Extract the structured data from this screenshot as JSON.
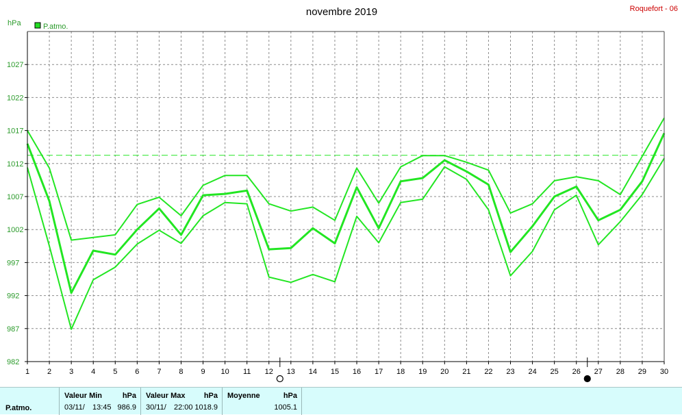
{
  "header": {
    "title": "novembre 2019",
    "station": "Roquefort - 06",
    "unit_label": "hPa",
    "legend_label": "P.atmo."
  },
  "chart_data": {
    "type": "line",
    "title": "novembre 2019",
    "ylabel": "hPa",
    "ylim": [
      982,
      1032
    ],
    "yticks": [
      982,
      987,
      992,
      997,
      1002,
      1007,
      1012,
      1017,
      1022,
      1027
    ],
    "x": [
      1,
      2,
      3,
      4,
      5,
      6,
      7,
      8,
      9,
      10,
      11,
      12,
      13,
      14,
      15,
      16,
      17,
      18,
      19,
      20,
      21,
      22,
      23,
      24,
      25,
      26,
      27,
      28,
      29,
      30
    ],
    "grid": true,
    "reference_line": 1013.25,
    "series": [
      {
        "name": "P.atmo.",
        "role": "max",
        "values": [
          1017.0,
          1011.3,
          1000.4,
          1000.8,
          1001.2,
          1005.8,
          1006.9,
          1004.1,
          1008.7,
          1010.2,
          1010.2,
          1005.9,
          1004.8,
          1005.4,
          1003.4,
          1011.3,
          1006.0,
          1011.5,
          1013.2,
          1013.2,
          1012.2,
          1011.0,
          1004.5,
          1005.9,
          1009.4,
          1010.0,
          1009.4,
          1007.3,
          1013.1,
          1018.9
        ]
      },
      {
        "name": "P.atmo.",
        "role": "avg",
        "values": [
          1015.0,
          1006.3,
          992.4,
          998.8,
          998.2,
          1002.0,
          1005.2,
          1001.2,
          1007.2,
          1007.4,
          1007.9,
          999.0,
          999.2,
          1002.2,
          999.9,
          1008.4,
          1002.2,
          1009.3,
          1009.8,
          1012.5,
          1010.8,
          1008.8,
          998.6,
          1002.5,
          1007.0,
          1008.5,
          1003.4,
          1005.0,
          1009.3,
          1016.6
        ]
      },
      {
        "name": "P.atmo.",
        "role": "min",
        "values": [
          1011.4,
          999.5,
          986.9,
          994.4,
          996.3,
          999.8,
          1001.9,
          999.9,
          1004.1,
          1006.1,
          1005.9,
          994.8,
          994.0,
          995.2,
          994.1,
          1004.0,
          1000.0,
          1006.1,
          1006.6,
          1011.5,
          1009.6,
          1005.0,
          995.0,
          998.7,
          1005.0,
          1007.2,
          999.7,
          1003.2,
          1007.3,
          1012.8
        ]
      }
    ],
    "moon_markers": [
      {
        "between": [
          12,
          13
        ],
        "phase": "first-quarter"
      },
      {
        "between": [
          26,
          27
        ],
        "phase": "last-quarter"
      }
    ],
    "colors": {
      "line": "#22e622",
      "legend_swatch": "#22dd22",
      "grid": "#8c8c8c",
      "axis": "#000000",
      "label": "#2a9a2a",
      "station": "#cc0000"
    }
  },
  "footer": {
    "row_label": "P.atmo.",
    "min": {
      "title": "Valeur Min",
      "unit": "hPa",
      "date": "03/11/",
      "time": "13:45",
      "value": "986.9"
    },
    "max": {
      "title": "Valeur Max",
      "unit": "hPa",
      "date": "30/11/",
      "time": "22:00",
      "value": "1018.9"
    },
    "mean": {
      "title": "Moyenne",
      "unit": "hPa",
      "value": "1005.1"
    }
  }
}
